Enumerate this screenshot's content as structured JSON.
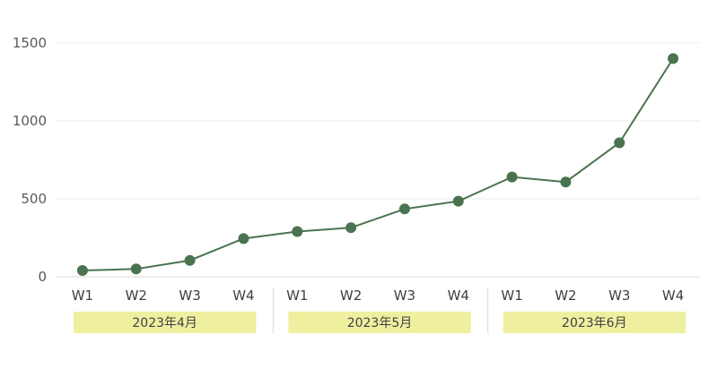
{
  "chart_data": {
    "type": "line",
    "categories": [
      "W1",
      "W2",
      "W3",
      "W4",
      "W1",
      "W2",
      "W3",
      "W4",
      "W1",
      "W2",
      "W3",
      "W4"
    ],
    "groups": [
      {
        "label": "2023年4月",
        "count": 4
      },
      {
        "label": "2023年5月",
        "count": 4
      },
      {
        "label": "2023年6月",
        "count": 4
      }
    ],
    "series": [
      {
        "values": [
          40,
          50,
          105,
          245,
          290,
          315,
          435,
          485,
          640,
          608,
          860,
          1400
        ],
        "color": "#4a7350"
      }
    ],
    "ylim": [
      0,
      1500
    ],
    "yticks": [
      "0",
      "500",
      "1000",
      "1500"
    ],
    "grid": true,
    "group_band_color": "#eef0a0",
    "gridline_color": "#ececec",
    "axis_color": "#d9d9d9"
  }
}
